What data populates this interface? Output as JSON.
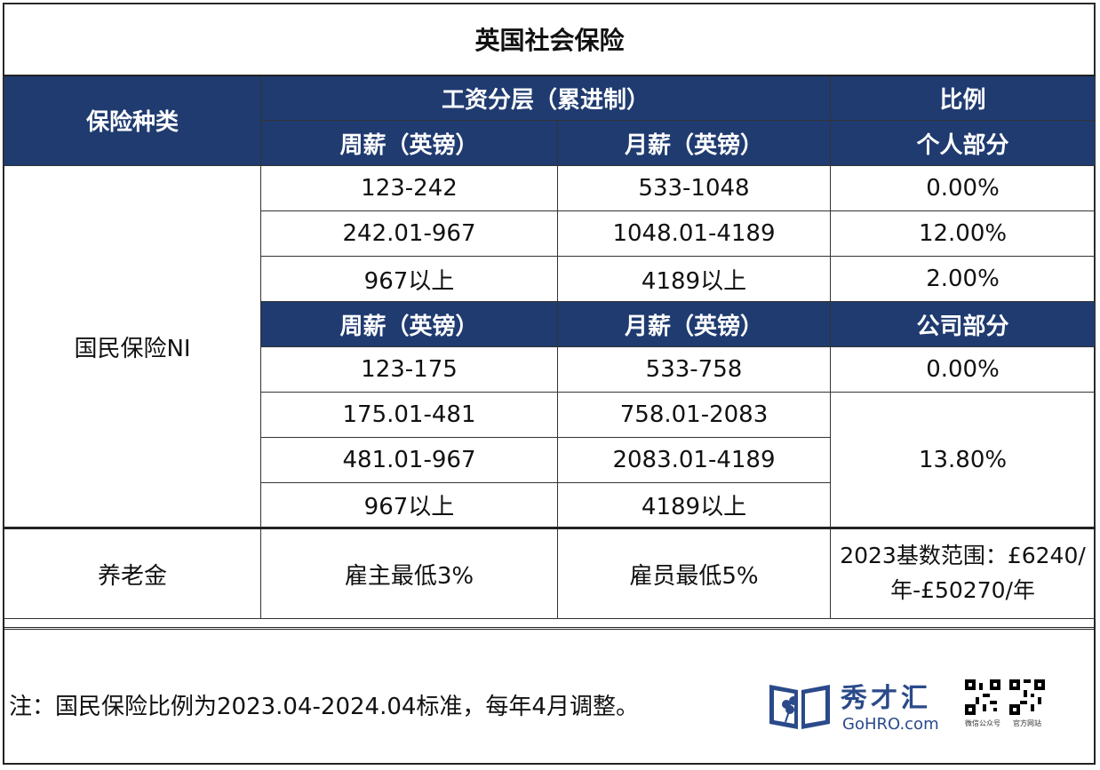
{
  "title": "英国社会保险",
  "header": {
    "insurance_type": "保险种类",
    "wage_tier": "工资分层（累进制）",
    "ratio": "比例",
    "weekly": "周薪（英镑）",
    "monthly": "月薪（英镑）",
    "personal": "个人部分",
    "company": "公司部分"
  },
  "ni": {
    "label": "国民保险NI",
    "personal_rows": [
      {
        "weekly": "123-242",
        "monthly": "533-1048",
        "rate": "0.00%"
      },
      {
        "weekly": "242.01-967",
        "monthly": "1048.01-4189",
        "rate": "12.00%"
      },
      {
        "weekly": "967以上",
        "monthly": "4189以上",
        "rate": "2.00%"
      }
    ],
    "company_rows": [
      {
        "weekly": "123-175",
        "monthly": "533-758",
        "rate": "0.00%"
      },
      {
        "weekly": "175.01-481",
        "monthly": "758.01-2083"
      },
      {
        "weekly": "481.01-967",
        "monthly": "2083.01-4189"
      },
      {
        "weekly": "967以上",
        "monthly": "4189以上"
      }
    ],
    "company_merged_rate": "13.80%"
  },
  "pension": {
    "label": "养老金",
    "employer": "雇主最低3%",
    "employee": "雇员最低5%",
    "base_line1": "2023基数范围：£6240/",
    "base_line2": "年-£50270/年"
  },
  "footnote": "注：国民保险比例为2023.04-2024.04标准，每年4月调整。",
  "logo": {
    "name": "秀才汇",
    "url": "GoHRO.com",
    "qr1_caption": "微信公众号",
    "qr2_caption": "官方网站"
  },
  "colors": {
    "header_bg": "#1f3b70",
    "logo": "#2a4a8a"
  }
}
